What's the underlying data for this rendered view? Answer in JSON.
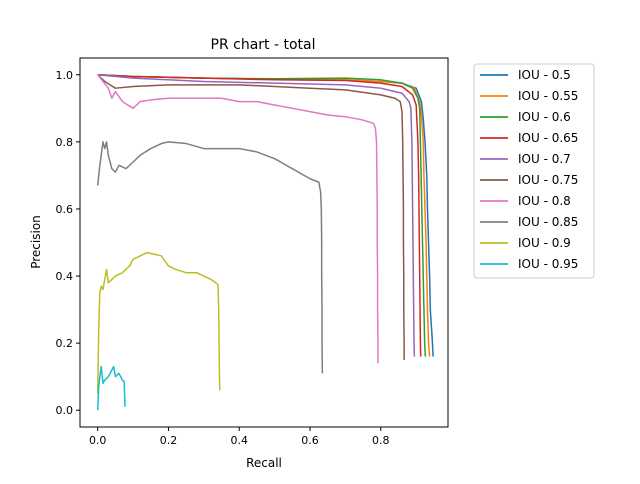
{
  "chart_data": {
    "type": "line",
    "title": "PR chart - total",
    "xlabel": "Recall",
    "ylabel": "Precision",
    "xlim": [
      -0.05,
      0.99
    ],
    "ylim": [
      -0.05,
      1.05
    ],
    "xticks": [
      0.0,
      0.2,
      0.4,
      0.6,
      0.8
    ],
    "yticks": [
      0.0,
      0.2,
      0.4,
      0.6,
      0.8,
      1.0
    ],
    "grid": false,
    "legend_position": "outside-right",
    "series": [
      {
        "name": "IOU - 0.5",
        "color": "#1f77b4",
        "points": [
          [
            0,
            1.0
          ],
          [
            0.1,
            0.995
          ],
          [
            0.3,
            0.99
          ],
          [
            0.5,
            0.987
          ],
          [
            0.7,
            0.985
          ],
          [
            0.8,
            0.98
          ],
          [
            0.86,
            0.975
          ],
          [
            0.9,
            0.96
          ],
          [
            0.915,
            0.92
          ],
          [
            0.92,
            0.87
          ],
          [
            0.925,
            0.8
          ],
          [
            0.93,
            0.7
          ],
          [
            0.932,
            0.6
          ],
          [
            0.935,
            0.5
          ],
          [
            0.938,
            0.4
          ],
          [
            0.94,
            0.3
          ],
          [
            0.945,
            0.22
          ],
          [
            0.948,
            0.16
          ]
        ]
      },
      {
        "name": "IOU - 0.55",
        "color": "#ff7f0e",
        "points": [
          [
            0,
            1.0
          ],
          [
            0.1,
            0.995
          ],
          [
            0.3,
            0.99
          ],
          [
            0.5,
            0.987
          ],
          [
            0.7,
            0.985
          ],
          [
            0.8,
            0.98
          ],
          [
            0.86,
            0.975
          ],
          [
            0.895,
            0.96
          ],
          [
            0.91,
            0.92
          ],
          [
            0.915,
            0.88
          ],
          [
            0.92,
            0.8
          ],
          [
            0.922,
            0.7
          ],
          [
            0.925,
            0.6
          ],
          [
            0.928,
            0.5
          ],
          [
            0.93,
            0.4
          ],
          [
            0.932,
            0.3
          ],
          [
            0.935,
            0.2
          ],
          [
            0.938,
            0.16
          ]
        ]
      },
      {
        "name": "IOU - 0.6",
        "color": "#2ca02c",
        "points": [
          [
            0,
            1.0
          ],
          [
            0.1,
            0.995
          ],
          [
            0.3,
            0.99
          ],
          [
            0.5,
            0.988
          ],
          [
            0.7,
            0.99
          ],
          [
            0.8,
            0.985
          ],
          [
            0.86,
            0.975
          ],
          [
            0.89,
            0.96
          ],
          [
            0.905,
            0.93
          ],
          [
            0.91,
            0.9
          ],
          [
            0.912,
            0.8
          ],
          [
            0.914,
            0.7
          ],
          [
            0.916,
            0.6
          ],
          [
            0.918,
            0.5
          ],
          [
            0.92,
            0.4
          ],
          [
            0.922,
            0.3
          ],
          [
            0.924,
            0.2
          ],
          [
            0.926,
            0.16
          ]
        ]
      },
      {
        "name": "IOU - 0.65",
        "color": "#d62728",
        "points": [
          [
            0,
            1.0
          ],
          [
            0.1,
            0.995
          ],
          [
            0.3,
            0.99
          ],
          [
            0.5,
            0.985
          ],
          [
            0.7,
            0.983
          ],
          [
            0.8,
            0.975
          ],
          [
            0.86,
            0.965
          ],
          [
            0.89,
            0.94
          ],
          [
            0.9,
            0.91
          ],
          [
            0.905,
            0.8
          ],
          [
            0.907,
            0.7
          ],
          [
            0.908,
            0.6
          ],
          [
            0.909,
            0.5
          ],
          [
            0.91,
            0.4
          ],
          [
            0.911,
            0.3
          ],
          [
            0.912,
            0.2
          ],
          [
            0.913,
            0.16
          ]
        ]
      },
      {
        "name": "IOU - 0.7",
        "color": "#9467bd",
        "points": [
          [
            0,
            1.0
          ],
          [
            0.1,
            0.99
          ],
          [
            0.3,
            0.98
          ],
          [
            0.5,
            0.975
          ],
          [
            0.7,
            0.97
          ],
          [
            0.8,
            0.96
          ],
          [
            0.86,
            0.945
          ],
          [
            0.88,
            0.92
          ],
          [
            0.885,
            0.9
          ],
          [
            0.888,
            0.8
          ],
          [
            0.889,
            0.7
          ],
          [
            0.89,
            0.6
          ],
          [
            0.891,
            0.5
          ],
          [
            0.892,
            0.4
          ],
          [
            0.893,
            0.3
          ],
          [
            0.894,
            0.2
          ],
          [
            0.895,
            0.16
          ]
        ]
      },
      {
        "name": "IOU - 0.75",
        "color": "#8c564b",
        "points": [
          [
            0,
            1.0
          ],
          [
            0.02,
            0.98
          ],
          [
            0.05,
            0.96
          ],
          [
            0.1,
            0.965
          ],
          [
            0.2,
            0.97
          ],
          [
            0.3,
            0.97
          ],
          [
            0.4,
            0.97
          ],
          [
            0.5,
            0.965
          ],
          [
            0.6,
            0.96
          ],
          [
            0.7,
            0.955
          ],
          [
            0.8,
            0.94
          ],
          [
            0.84,
            0.93
          ],
          [
            0.855,
            0.92
          ],
          [
            0.86,
            0.89
          ],
          [
            0.862,
            0.8
          ],
          [
            0.863,
            0.7
          ],
          [
            0.864,
            0.6
          ],
          [
            0.864,
            0.5
          ],
          [
            0.865,
            0.4
          ],
          [
            0.865,
            0.3
          ],
          [
            0.866,
            0.2
          ],
          [
            0.866,
            0.15
          ]
        ]
      },
      {
        "name": "IOU - 0.8",
        "color": "#e377c2",
        "points": [
          [
            0,
            1.0
          ],
          [
            0.03,
            0.96
          ],
          [
            0.04,
            0.93
          ],
          [
            0.05,
            0.95
          ],
          [
            0.07,
            0.92
          ],
          [
            0.1,
            0.9
          ],
          [
            0.12,
            0.92
          ],
          [
            0.15,
            0.925
          ],
          [
            0.2,
            0.93
          ],
          [
            0.25,
            0.93
          ],
          [
            0.3,
            0.93
          ],
          [
            0.35,
            0.93
          ],
          [
            0.4,
            0.92
          ],
          [
            0.45,
            0.92
          ],
          [
            0.5,
            0.91
          ],
          [
            0.55,
            0.9
          ],
          [
            0.6,
            0.89
          ],
          [
            0.65,
            0.88
          ],
          [
            0.7,
            0.875
          ],
          [
            0.75,
            0.865
          ],
          [
            0.78,
            0.855
          ],
          [
            0.785,
            0.84
          ],
          [
            0.788,
            0.8
          ],
          [
            0.789,
            0.7
          ],
          [
            0.79,
            0.6
          ],
          [
            0.79,
            0.5
          ],
          [
            0.791,
            0.4
          ],
          [
            0.791,
            0.3
          ],
          [
            0.792,
            0.2
          ],
          [
            0.792,
            0.14
          ]
        ]
      },
      {
        "name": "IOU - 0.85",
        "color": "#7f7f7f",
        "points": [
          [
            0,
            0.67
          ],
          [
            0.005,
            0.72
          ],
          [
            0.01,
            0.76
          ],
          [
            0.015,
            0.8
          ],
          [
            0.02,
            0.78
          ],
          [
            0.025,
            0.8
          ],
          [
            0.03,
            0.76
          ],
          [
            0.04,
            0.72
          ],
          [
            0.05,
            0.71
          ],
          [
            0.06,
            0.73
          ],
          [
            0.08,
            0.72
          ],
          [
            0.1,
            0.74
          ],
          [
            0.12,
            0.76
          ],
          [
            0.15,
            0.78
          ],
          [
            0.18,
            0.795
          ],
          [
            0.2,
            0.8
          ],
          [
            0.25,
            0.795
          ],
          [
            0.3,
            0.78
          ],
          [
            0.35,
            0.78
          ],
          [
            0.4,
            0.78
          ],
          [
            0.45,
            0.77
          ],
          [
            0.5,
            0.75
          ],
          [
            0.55,
            0.72
          ],
          [
            0.6,
            0.69
          ],
          [
            0.625,
            0.68
          ],
          [
            0.63,
            0.65
          ],
          [
            0.632,
            0.6
          ],
          [
            0.633,
            0.5
          ],
          [
            0.633,
            0.4
          ],
          [
            0.634,
            0.3
          ],
          [
            0.634,
            0.2
          ],
          [
            0.635,
            0.11
          ]
        ]
      },
      {
        "name": "IOU - 0.9",
        "color": "#bcbd22",
        "points": [
          [
            0,
            0.05
          ],
          [
            0.003,
            0.25
          ],
          [
            0.006,
            0.35
          ],
          [
            0.01,
            0.37
          ],
          [
            0.015,
            0.36
          ],
          [
            0.02,
            0.39
          ],
          [
            0.025,
            0.42
          ],
          [
            0.03,
            0.38
          ],
          [
            0.04,
            0.39
          ],
          [
            0.05,
            0.4
          ],
          [
            0.07,
            0.41
          ],
          [
            0.09,
            0.43
          ],
          [
            0.1,
            0.45
          ],
          [
            0.12,
            0.46
          ],
          [
            0.14,
            0.47
          ],
          [
            0.16,
            0.465
          ],
          [
            0.18,
            0.46
          ],
          [
            0.2,
            0.43
          ],
          [
            0.22,
            0.42
          ],
          [
            0.25,
            0.41
          ],
          [
            0.28,
            0.41
          ],
          [
            0.3,
            0.4
          ],
          [
            0.32,
            0.39
          ],
          [
            0.34,
            0.375
          ],
          [
            0.342,
            0.3
          ],
          [
            0.343,
            0.2
          ],
          [
            0.344,
            0.1
          ],
          [
            0.345,
            0.06
          ]
        ]
      },
      {
        "name": "IOU - 0.95",
        "color": "#17becf",
        "points": [
          [
            0,
            0.0
          ],
          [
            0.003,
            0.07
          ],
          [
            0.006,
            0.1
          ],
          [
            0.01,
            0.13
          ],
          [
            0.015,
            0.08
          ],
          [
            0.02,
            0.09
          ],
          [
            0.03,
            0.1
          ],
          [
            0.04,
            0.12
          ],
          [
            0.045,
            0.13
          ],
          [
            0.05,
            0.1
          ],
          [
            0.06,
            0.11
          ],
          [
            0.07,
            0.09
          ],
          [
            0.075,
            0.085
          ],
          [
            0.076,
            0.05
          ],
          [
            0.077,
            0.01
          ]
        ]
      }
    ]
  }
}
